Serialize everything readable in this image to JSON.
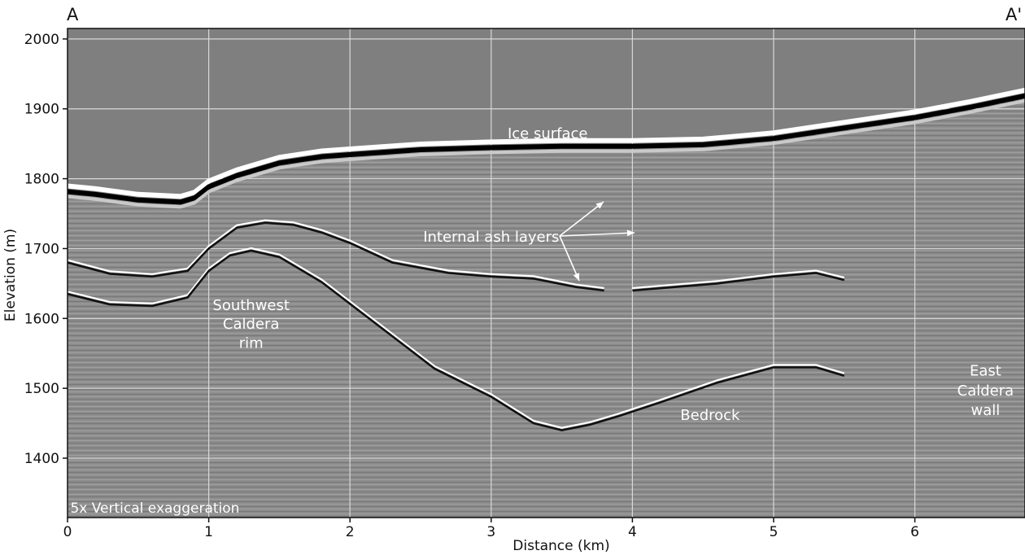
{
  "chart_data": {
    "type": "line",
    "title": "",
    "xlabel": "Distance (km)",
    "ylabel": "Elevation (m)",
    "xlim": [
      0,
      6.78
    ],
    "ylim": [
      1315,
      2015
    ],
    "x_ticks": [
      "0",
      "1",
      "2",
      "3",
      "4",
      "5",
      "6"
    ],
    "y_ticks": [
      "1400",
      "1500",
      "1600",
      "1700",
      "1800",
      "1900",
      "2000"
    ],
    "grid": true,
    "profile_start_label": "A",
    "profile_end_label": "A'",
    "colors": {
      "sky": "#7f7f7f",
      "radar_background": "#8c8c8c",
      "grid": "#d8d8d8",
      "annotation_text": "#ffffff"
    },
    "series": [
      {
        "x": [
          0,
          0.2,
          0.5,
          0.8,
          0.9,
          1.0,
          1.2,
          1.5,
          1.8,
          2.0,
          2.5,
          3.0,
          3.5,
          4.0,
          4.5,
          5.0,
          5.5,
          6.0,
          6.4,
          6.78
        ],
        "y": [
          1785,
          1781,
          1773,
          1770,
          1776,
          1792,
          1808,
          1826,
          1835,
          1838,
          1845,
          1848,
          1850,
          1850,
          1852,
          1861,
          1876,
          1891,
          1906,
          1922
        ]
      },
      {
        "x": [
          0,
          0.3,
          0.6,
          0.85,
          1.0,
          1.2,
          1.4,
          1.6,
          1.8,
          2.0,
          2.3,
          2.7,
          3.0,
          3.3,
          3.6,
          3.8
        ],
        "y": [
          1680,
          1664,
          1660,
          1668,
          1700,
          1730,
          1737,
          1734,
          1723,
          1708,
          1680,
          1665,
          1660,
          1657,
          1645,
          1640
        ]
      },
      {
        "x": [
          0,
          0.3,
          0.6,
          0.85,
          1.0,
          1.15,
          1.3,
          1.5,
          1.8,
          2.2,
          2.6,
          3.0,
          3.3,
          3.5,
          3.7,
          3.9,
          4.2,
          4.6,
          5.0,
          5.3,
          5.5
        ],
        "y": [
          1635,
          1620,
          1618,
          1630,
          1668,
          1690,
          1697,
          1688,
          1652,
          1590,
          1528,
          1488,
          1450,
          1440,
          1448,
          1460,
          1480,
          1508,
          1530,
          1530,
          1518
        ]
      },
      {
        "x": [
          4.0,
          4.3,
          4.6,
          5.0,
          5.3,
          5.5
        ],
        "y": [
          1640,
          1645,
          1650,
          1660,
          1665,
          1655
        ]
      }
    ],
    "annotations": [
      {
        "text": "Ice surface",
        "x": 3.4,
        "y": 1858
      },
      {
        "text": "Internal ash layers",
        "x": 3.0,
        "y": 1710
      },
      {
        "text": "Southwest",
        "x": 1.3,
        "y": 1612
      },
      {
        "text": "Caldera",
        "x": 1.3,
        "y": 1585
      },
      {
        "text": "rim",
        "x": 1.3,
        "y": 1558
      },
      {
        "text": "Bedrock",
        "x": 4.55,
        "y": 1455
      },
      {
        "text": "East",
        "x": 6.5,
        "y": 1518
      },
      {
        "text": "Caldera",
        "x": 6.5,
        "y": 1490
      },
      {
        "text": "wall",
        "x": 6.5,
        "y": 1462
      },
      {
        "text": "5x Vertical exaggeration",
        "x": 0.02,
        "y": 1322
      }
    ]
  }
}
